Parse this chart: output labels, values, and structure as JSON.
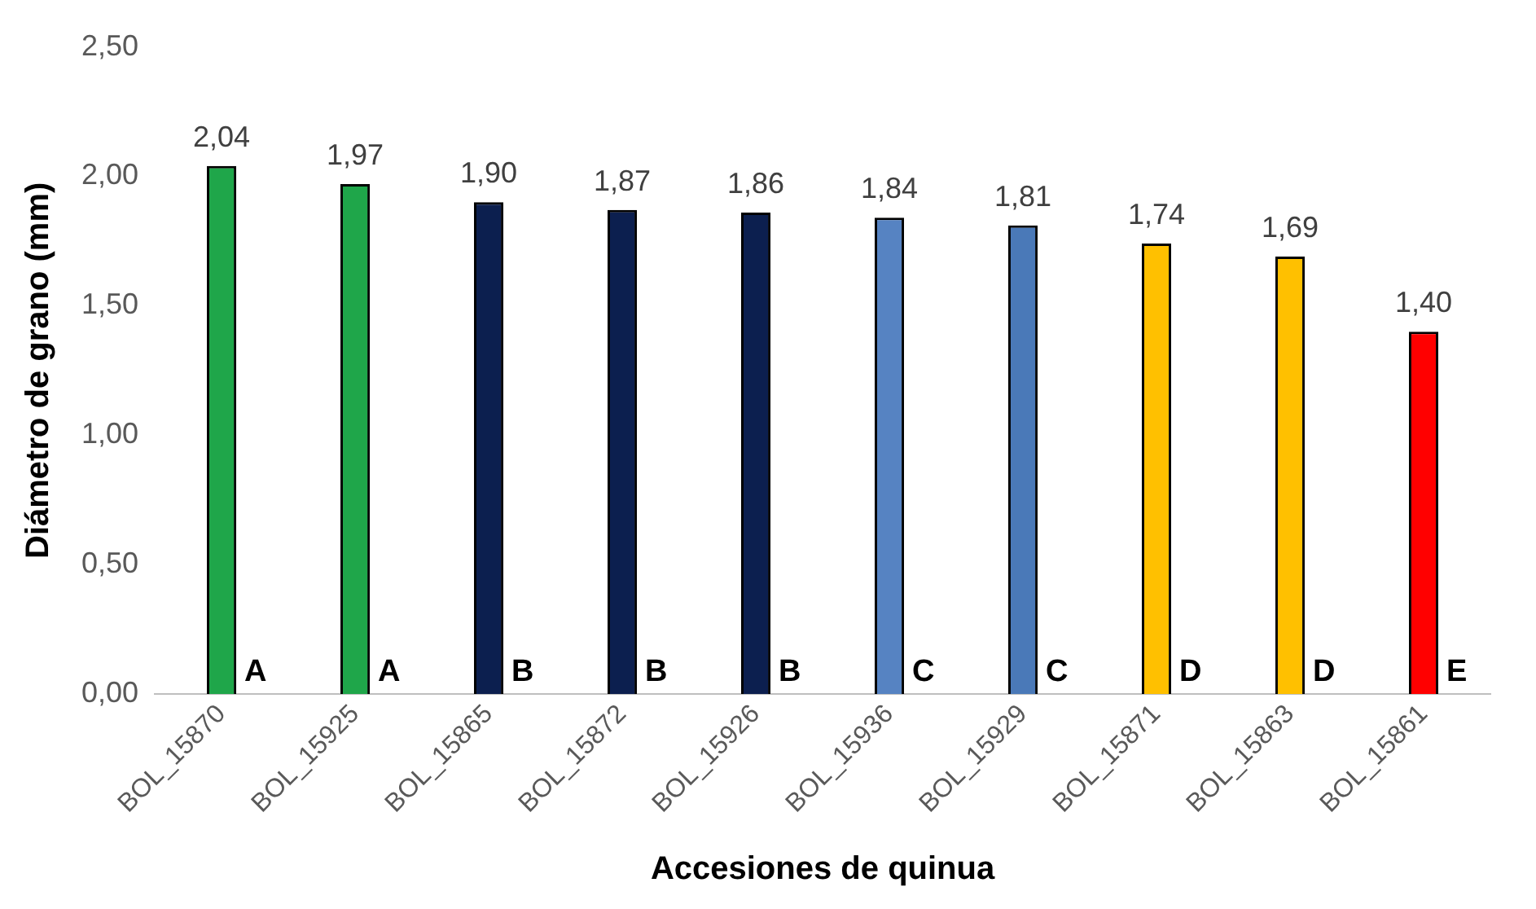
{
  "chart_data": {
    "type": "bar",
    "xlabel": "Accesiones de quinua",
    "ylabel": "Diámetro de grano (mm)",
    "categories": [
      "BOL_15870",
      "BOL_15925",
      "BOL_15865",
      "BOL_15872",
      "BOL_15926",
      "BOL_15936",
      "BOL_15929",
      "BOL_15871",
      "BOL_15863",
      "BOL_15861"
    ],
    "values": [
      2.04,
      1.97,
      1.9,
      1.87,
      1.86,
      1.84,
      1.81,
      1.74,
      1.69,
      1.4
    ],
    "value_labels": [
      "2,04",
      "1,97",
      "1,90",
      "1,87",
      "1,86",
      "1,84",
      "1,81",
      "1,74",
      "1,69",
      "1,40"
    ],
    "colors": [
      "#1fa64a",
      "#1fa64a",
      "#0c1f4f",
      "#0c1f4f",
      "#0c1f4f",
      "#5683c2",
      "#4a79b8",
      "#ffc000",
      "#ffc000",
      "#ff0000"
    ],
    "ylim": [
      0,
      2.5
    ],
    "yticks": [
      {
        "value": 0,
        "label": "0,00"
      },
      {
        "value": 0.5,
        "label": "0,50"
      },
      {
        "value": 1,
        "label": "1,00"
      },
      {
        "value": 1.5,
        "label": "1,50"
      },
      {
        "value": 2,
        "label": "2,00"
      },
      {
        "value": 2.5,
        "label": "2,50"
      }
    ],
    "grid": false,
    "legend": false,
    "annotations": [
      "A",
      "A",
      "B",
      "B",
      "B",
      "C",
      "C",
      "D",
      "D",
      "E"
    ]
  }
}
